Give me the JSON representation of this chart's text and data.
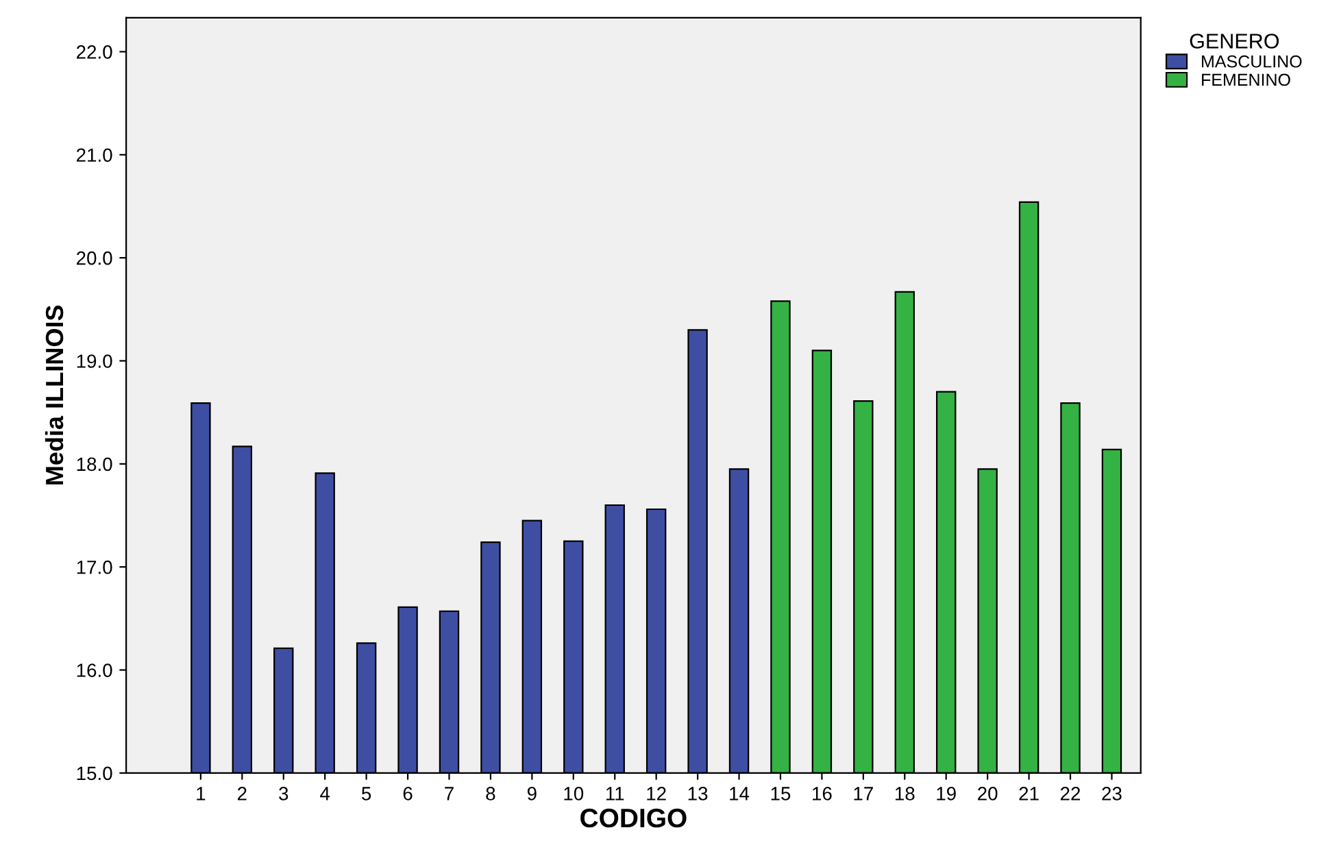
{
  "chart_data": {
    "type": "bar",
    "xlabel": "CODIGO",
    "ylabel": "Media ILLINOIS",
    "legend_title": "GENERO",
    "legend": "top right",
    "grid": false,
    "categories": [
      "1",
      "2",
      "3",
      "4",
      "5",
      "6",
      "7",
      "8",
      "9",
      "10",
      "11",
      "12",
      "13",
      "14",
      "15",
      "16",
      "17",
      "18",
      "19",
      "20",
      "21",
      "22",
      "23"
    ],
    "series": [
      {
        "name": "MASCULINO",
        "color": "#3e4fa3",
        "values": [
          18.59,
          18.17,
          16.21,
          17.91,
          16.26,
          16.61,
          16.57,
          17.24,
          17.45,
          17.25,
          17.6,
          17.56,
          19.3,
          17.95,
          null,
          null,
          null,
          null,
          null,
          null,
          null,
          null,
          null
        ]
      },
      {
        "name": "FEMENINO",
        "color": "#34b244",
        "values": [
          null,
          null,
          null,
          null,
          null,
          null,
          null,
          null,
          null,
          null,
          null,
          null,
          null,
          null,
          19.58,
          19.1,
          18.61,
          19.67,
          18.7,
          17.95,
          20.54,
          18.59,
          18.14
        ]
      }
    ],
    "ylim": [
      15,
      22.33
    ],
    "yticks": [
      {
        "value": 15,
        "label": "15.0"
      },
      {
        "value": 16,
        "label": "16.0"
      },
      {
        "value": 17,
        "label": "17.0"
      },
      {
        "value": 18,
        "label": "18.0"
      },
      {
        "value": 19,
        "label": "19.0"
      },
      {
        "value": 20,
        "label": "20.0"
      },
      {
        "value": 21,
        "label": "21.0"
      },
      {
        "value": 22,
        "label": "22.0"
      }
    ]
  }
}
